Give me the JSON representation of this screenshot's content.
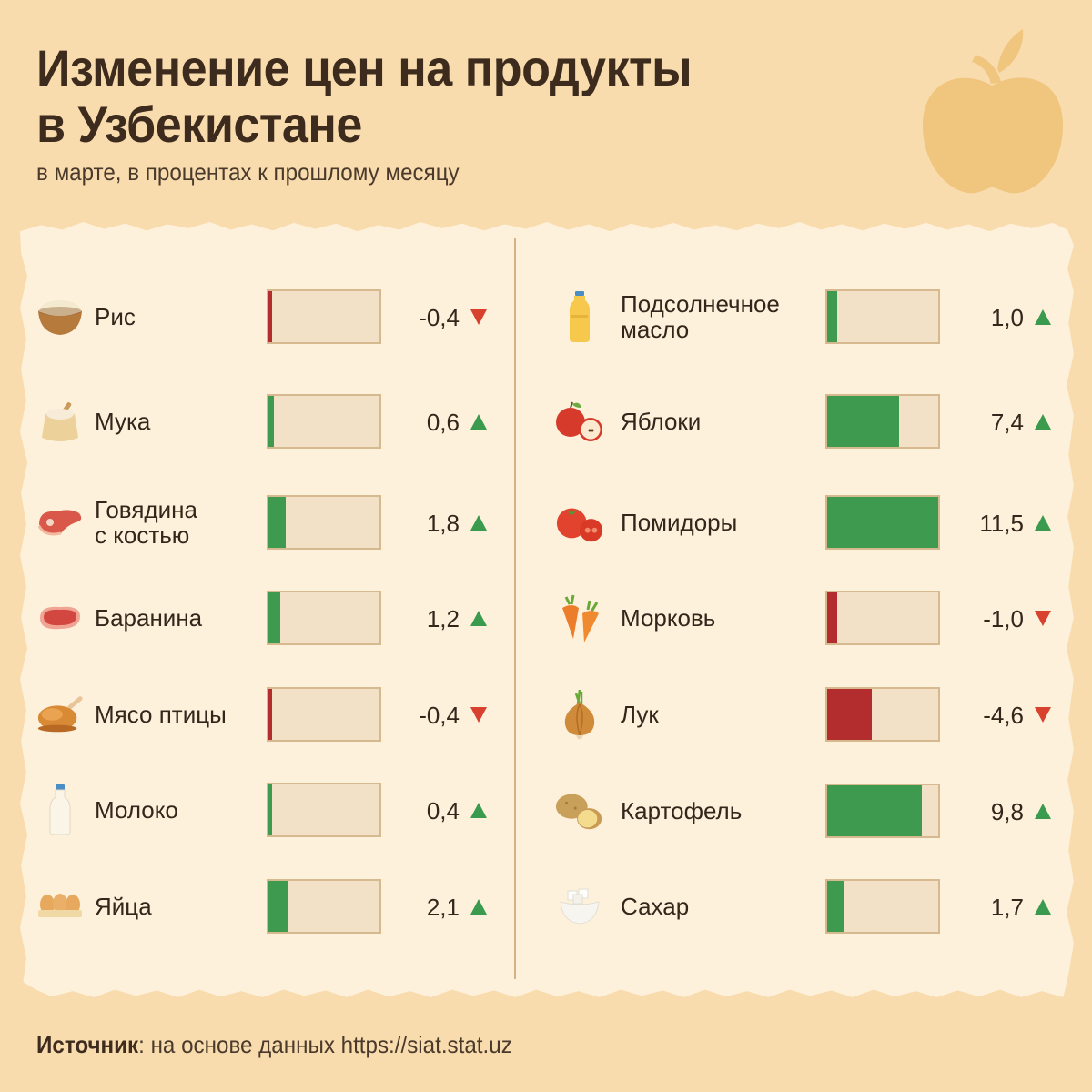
{
  "header": {
    "title_line1": "Изменение цен на продукты",
    "title_line2": "в Узбекистане",
    "subtitle": "в марте, в процентах к прошлому месяцу"
  },
  "footer": {
    "source_label": "Источник",
    "source_sep": ":",
    "source_text": " на основе данных https://siat.stat.uz"
  },
  "colors": {
    "background": "#f9dcae",
    "panel": "#fef1dc",
    "positive_bar": "#3d9a4f",
    "negative_bar": "#b32d2e",
    "up_arrow": "#3a9a4e",
    "down_arrow": "#d9412f",
    "bar_track": "#f2e1c6",
    "bar_border": "#d6b98f"
  },
  "decor": {
    "icon": "apple-icon"
  },
  "left_column": [
    {
      "label": "Рис",
      "value": "-0,4",
      "icon": "rice-bowl-icon",
      "direction": "down"
    },
    {
      "label": "Мука",
      "value": "0,6",
      "icon": "flour-sack-icon",
      "direction": "up"
    },
    {
      "label": "Говядина\nс костью",
      "value": "1,8",
      "icon": "beef-steak-icon",
      "direction": "up"
    },
    {
      "label": "Баранина",
      "value": "1,2",
      "icon": "lamb-meat-icon",
      "direction": "up"
    },
    {
      "label": "Мясо птицы",
      "value": "-0,4",
      "icon": "roast-chicken-icon",
      "direction": "down"
    },
    {
      "label": "Молоко",
      "value": "0,4",
      "icon": "milk-bottle-icon",
      "direction": "up"
    },
    {
      "label": "Яйца",
      "value": "2,1",
      "icon": "eggs-icon",
      "direction": "up"
    }
  ],
  "right_column": [
    {
      "label": "Подсолнечное\nмасло",
      "value": "1,0",
      "icon": "oil-bottle-icon",
      "direction": "up"
    },
    {
      "label": "Яблоки",
      "value": "7,4",
      "icon": "apples-icon",
      "direction": "up"
    },
    {
      "label": "Помидоры",
      "value": "11,5",
      "icon": "tomatoes-icon",
      "direction": "up"
    },
    {
      "label": "Морковь",
      "value": "-1,0",
      "icon": "carrots-icon",
      "direction": "down"
    },
    {
      "label": "Лук",
      "value": "-4,6",
      "icon": "onion-icon",
      "direction": "down"
    },
    {
      "label": "Картофель",
      "value": "9,8",
      "icon": "potatoes-icon",
      "direction": "up"
    },
    {
      "label": "Сахар",
      "value": "1,7",
      "icon": "sugar-bowl-icon",
      "direction": "up"
    }
  ],
  "chart_data": {
    "type": "bar",
    "orientation": "horizontal",
    "title": "Изменение цен на продукты в Узбекистане",
    "subtitle": "в марте, в процентах к прошлому месяцу",
    "xlabel": "",
    "ylabel": "",
    "unit": "%",
    "bar_scale_max_abs": 11.5,
    "categories": [
      "Рис",
      "Мука",
      "Говядина с костью",
      "Баранина",
      "Мясо птицы",
      "Молоко",
      "Яйца",
      "Подсолнечное масло",
      "Яблоки",
      "Помидоры",
      "Морковь",
      "Лук",
      "Картофель",
      "Сахар"
    ],
    "values": [
      -0.4,
      0.6,
      1.8,
      1.2,
      -0.4,
      0.4,
      2.1,
      1.0,
      7.4,
      11.5,
      -1.0,
      -4.6,
      9.8,
      1.7
    ],
    "legend": [],
    "grid": false,
    "source": "Источник: на основе данных https://siat.stat.uz"
  }
}
